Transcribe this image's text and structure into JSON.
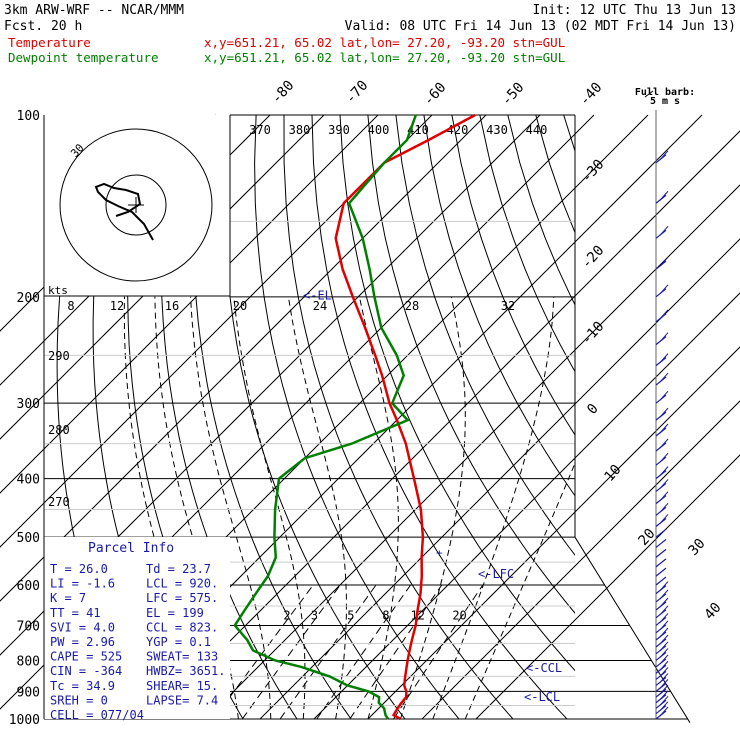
{
  "header": {
    "model": "3km ARW-WRF -- NCAR/MMM",
    "fcst": "Fcst.   20 h",
    "init": "Init: 12 UTC Thu 13 Jun 13",
    "valid": "Valid: 08 UTC Fri 14 Jun 13 (02 MDT Fri 14 Jun 13)"
  },
  "legend": [
    {
      "label": "Temperature",
      "info": "x,y=651.21, 65.02   lat,lon= 27.20, -93.20   stn=GUL",
      "color": "#e00000"
    },
    {
      "label": "Dewpoint temperature",
      "info": "x,y=651.21, 65.02   lat,lon= 27.20, -93.20   stn=GUL",
      "color": "#008000"
    }
  ],
  "full_barb": [
    "Full barb:",
    "5 m s"
  ],
  "hodograph": {
    "units": "kts",
    "ring_label": "30"
  },
  "parcel_info": {
    "title": "Parcel Info",
    "rows": [
      [
        "T  =    26.0",
        "Td =  23.7"
      ],
      [
        "LI =    -1.6",
        "LCL =  920."
      ],
      [
        "K  =       7",
        "LFC =  575."
      ],
      [
        "TT =      41",
        "EL  =   199"
      ],
      [
        "SVI =    4.0",
        "CCL =  823."
      ],
      [
        "PW =    2.96",
        "YGP =   0.1"
      ],
      [
        "CAPE =   525",
        "SWEAT=  133"
      ],
      [
        "CIN =   -364",
        "HWBZ= 3651."
      ],
      [
        "Tc =    34.9",
        "SHEAR=  15."
      ],
      [
        "SREH =     0",
        "LAPSE=  7.4"
      ],
      [
        "CELL = 077/04",
        ""
      ]
    ]
  },
  "level_markers": [
    {
      "label": "<-EL",
      "p": 199
    },
    {
      "label": "<-LFC",
      "p": 575
    },
    {
      "label": "<-CCL",
      "p": 823
    },
    {
      "label": "<-LCL",
      "p": 920
    }
  ],
  "chart_data": {
    "type": "skew-t log-p",
    "pressure_axis": {
      "ticks": [
        100,
        200,
        300,
        400,
        500,
        600,
        700,
        800,
        900,
        1000
      ],
      "range": [
        100,
        1000
      ],
      "scale": "log"
    },
    "isotherm_labels": [
      -80,
      -70,
      -60,
      -50,
      -40,
      -30,
      -20,
      -10,
      0,
      10,
      20,
      30,
      40
    ],
    "theta_labels": [
      370,
      380,
      390,
      400,
      410,
      420,
      430,
      440
    ],
    "theta_left_labels": [
      290,
      280,
      270
    ],
    "mixing_ratio_labels": [
      2,
      3,
      5,
      8,
      12,
      20
    ],
    "hodograph_speed_labels": [
      8,
      12,
      16,
      20,
      24,
      28,
      32
    ],
    "series": [
      {
        "name": "Temperature",
        "color": "#e00000",
        "p": [
          1000,
          985,
          960,
          940,
          920,
          900,
          880,
          850,
          820,
          800,
          770,
          740,
          700,
          660,
          620,
          580,
          540,
          500,
          450,
          400,
          350,
          320,
          300,
          270,
          250,
          225,
          200,
          180,
          160,
          140,
          120,
          110,
          100
        ],
        "t": [
          26.0,
          24.0,
          23.5,
          23.2,
          23.0,
          22.0,
          20.5,
          19.0,
          17.5,
          16.5,
          15.0,
          13.5,
          11.5,
          9.0,
          6.5,
          3.5,
          0.0,
          -3.5,
          -9.0,
          -16.0,
          -24.0,
          -30.0,
          -34.5,
          -41.0,
          -46.0,
          -53.0,
          -61.0,
          -68.0,
          -75.0,
          -80.0,
          -80.0,
          -76.0,
          -72.0
        ]
      },
      {
        "name": "Dewpoint temperature",
        "color": "#008000",
        "p": [
          1000,
          985,
          960,
          940,
          920,
          900,
          880,
          850,
          820,
          800,
          770,
          740,
          700,
          660,
          620,
          580,
          540,
          500,
          450,
          400,
          370,
          350,
          320,
          300,
          270,
          250,
          225,
          200,
          180,
          160,
          140,
          120,
          110,
          100
        ],
        "t": [
          23.7,
          22.5,
          21.0,
          19.0,
          18.0,
          15.0,
          10.0,
          5.0,
          -2.0,
          -8.0,
          -14.0,
          -17.0,
          -22.0,
          -23.0,
          -24.0,
          -25.0,
          -27.0,
          -31.0,
          -36.0,
          -41.0,
          -40.0,
          -34.0,
          -28.0,
          -34.0,
          -37.0,
          -42.0,
          -50.0,
          -57.0,
          -63.0,
          -70.0,
          -79.0,
          -80.0,
          -80.0,
          -83.0
        ]
      }
    ]
  }
}
